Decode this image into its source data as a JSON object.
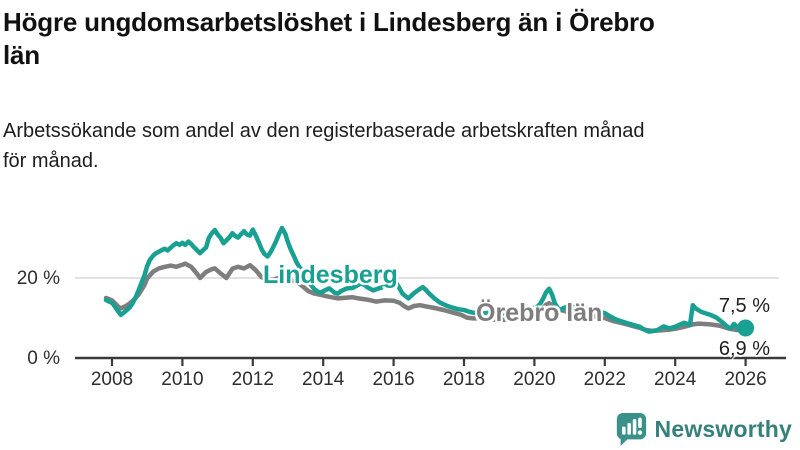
{
  "header": {
    "title": "Högre ungdomsarbetslöshet i Lindesberg än i Örebro\nlän",
    "subtitle": "Arbetssökande som andel av den registerbaserade arbetskraften månad\nför månad."
  },
  "branding": {
    "logo_text": "Newsworthy",
    "logo_icon": "bar-chart-speech-bubble-icon",
    "logo_color": "#399189"
  },
  "chart_data": {
    "type": "line",
    "title": "Högre ungdomsarbetslöshet i Lindesberg än i Örebro län",
    "subtitle": "Arbetssökande som andel av den registerbaserade arbetskraften månad för månad.",
    "y_unit": "%",
    "x_unit": "year, monthly observations",
    "xlim": [
      2007.6,
      2026.5
    ],
    "ylim": [
      0,
      36
    ],
    "grid": "single horizontal gridline at 20 %",
    "legend": "inline labels next to lines",
    "x_ticks": [
      2008,
      2010,
      2012,
      2014,
      2016,
      2018,
      2020,
      2022,
      2024,
      2026
    ],
    "y_ticks": [
      {
        "value": 20,
        "label": "20 %"
      },
      {
        "value": 0,
        "label": "0 %"
      }
    ],
    "series": [
      {
        "name": "Lindesberg",
        "color": "#18a092",
        "end_value": 7.5,
        "end_label": "7,5 %",
        "points": [
          [
            2007.83,
            14.5
          ],
          [
            2007.92,
            14.1
          ],
          [
            2008.0,
            13.8
          ],
          [
            2008.08,
            12.9
          ],
          [
            2008.17,
            11.7
          ],
          [
            2008.25,
            10.8
          ],
          [
            2008.33,
            11.3
          ],
          [
            2008.5,
            12.6
          ],
          [
            2008.58,
            13.6
          ],
          [
            2008.67,
            15.1
          ],
          [
            2008.75,
            16.8
          ],
          [
            2008.83,
            18.6
          ],
          [
            2008.92,
            20.6
          ],
          [
            2009.0,
            23.0
          ],
          [
            2009.08,
            24.6
          ],
          [
            2009.17,
            25.6
          ],
          [
            2009.25,
            26.2
          ],
          [
            2009.42,
            27.0
          ],
          [
            2009.5,
            27.3
          ],
          [
            2009.58,
            26.9
          ],
          [
            2009.67,
            27.6
          ],
          [
            2009.75,
            28.2
          ],
          [
            2009.83,
            28.7
          ],
          [
            2009.92,
            28.3
          ],
          [
            2010.0,
            28.8
          ],
          [
            2010.08,
            28.3
          ],
          [
            2010.17,
            29.1
          ],
          [
            2010.25,
            28.5
          ],
          [
            2010.33,
            27.7
          ],
          [
            2010.42,
            26.9
          ],
          [
            2010.5,
            26.2
          ],
          [
            2010.58,
            26.9
          ],
          [
            2010.67,
            27.6
          ],
          [
            2010.75,
            30.0
          ],
          [
            2010.83,
            31.1
          ],
          [
            2010.92,
            32.0
          ],
          [
            2011.0,
            30.9
          ],
          [
            2011.08,
            30.1
          ],
          [
            2011.17,
            28.7
          ],
          [
            2011.25,
            29.4
          ],
          [
            2011.33,
            30.1
          ],
          [
            2011.42,
            31.2
          ],
          [
            2011.5,
            30.5
          ],
          [
            2011.58,
            30.1
          ],
          [
            2011.67,
            31.0
          ],
          [
            2011.75,
            31.7
          ],
          [
            2011.83,
            30.9
          ],
          [
            2011.92,
            30.6
          ],
          [
            2012.0,
            32.1
          ],
          [
            2012.08,
            30.7
          ],
          [
            2012.17,
            28.9
          ],
          [
            2012.25,
            27.2
          ],
          [
            2012.33,
            26.0
          ],
          [
            2012.42,
            25.4
          ],
          [
            2012.5,
            26.4
          ],
          [
            2012.58,
            27.7
          ],
          [
            2012.67,
            29.4
          ],
          [
            2012.75,
            31.1
          ],
          [
            2012.83,
            32.5
          ],
          [
            2012.92,
            31.1
          ],
          [
            2013.0,
            28.9
          ],
          [
            2013.08,
            27.1
          ],
          [
            2013.17,
            25.4
          ],
          [
            2013.25,
            23.8
          ],
          [
            2013.33,
            22.7
          ],
          [
            2013.42,
            21.4
          ],
          [
            2013.5,
            20.2
          ],
          [
            2013.58,
            19.1
          ],
          [
            2013.67,
            18.1
          ],
          [
            2013.75,
            17.2
          ],
          [
            2013.83,
            16.7
          ],
          [
            2013.92,
            16.3
          ],
          [
            2014.0,
            16.7
          ],
          [
            2014.17,
            17.4
          ],
          [
            2014.33,
            16.3
          ],
          [
            2014.42,
            16.1
          ],
          [
            2014.5,
            16.7
          ],
          [
            2014.67,
            17.4
          ],
          [
            2014.83,
            17.5
          ],
          [
            2014.92,
            17.9
          ],
          [
            2015.0,
            18.3
          ],
          [
            2015.08,
            18.6
          ],
          [
            2015.17,
            18.3
          ],
          [
            2015.25,
            17.7
          ],
          [
            2015.42,
            16.9
          ],
          [
            2015.58,
            17.4
          ],
          [
            2015.75,
            17.9
          ],
          [
            2015.92,
            18.4
          ],
          [
            2016.08,
            18.7
          ],
          [
            2016.17,
            17.4
          ],
          [
            2016.25,
            16.1
          ],
          [
            2016.42,
            14.9
          ],
          [
            2016.58,
            16.2
          ],
          [
            2016.75,
            17.3
          ],
          [
            2016.83,
            17.7
          ],
          [
            2016.92,
            17.0
          ],
          [
            2017.0,
            16.2
          ],
          [
            2017.17,
            14.8
          ],
          [
            2017.33,
            13.8
          ],
          [
            2017.5,
            13.1
          ],
          [
            2017.67,
            12.6
          ],
          [
            2017.83,
            12.2
          ],
          [
            2018.0,
            12.0
          ],
          [
            2018.17,
            11.5
          ],
          [
            2018.33,
            11.2
          ],
          [
            2018.5,
            11.1
          ],
          [
            2018.67,
            11.3
          ],
          [
            2018.83,
            11.2
          ],
          [
            2019.0,
            11.0
          ],
          [
            2019.17,
            11.2
          ],
          [
            2019.33,
            11.6
          ],
          [
            2019.5,
            12.2
          ],
          [
            2019.58,
            11.8
          ],
          [
            2019.75,
            12.1
          ],
          [
            2019.92,
            12.3
          ],
          [
            2020.08,
            12.8
          ],
          [
            2020.17,
            13.6
          ],
          [
            2020.25,
            14.9
          ],
          [
            2020.33,
            16.4
          ],
          [
            2020.42,
            17.3
          ],
          [
            2020.5,
            15.9
          ],
          [
            2020.58,
            13.7
          ],
          [
            2020.67,
            12.4
          ],
          [
            2020.75,
            12.0
          ],
          [
            2020.83,
            12.5
          ],
          [
            2020.92,
            12.8
          ],
          [
            2021.0,
            12.4
          ],
          [
            2021.08,
            12.9
          ],
          [
            2021.17,
            12.4
          ],
          [
            2021.25,
            12.8
          ],
          [
            2021.33,
            12.2
          ],
          [
            2021.5,
            12.2
          ],
          [
            2021.58,
            11.9
          ],
          [
            2021.75,
            11.4
          ],
          [
            2021.83,
            11.6
          ],
          [
            2022.0,
            11.2
          ],
          [
            2022.17,
            10.3
          ],
          [
            2022.33,
            9.6
          ],
          [
            2022.5,
            9.1
          ],
          [
            2022.67,
            8.6
          ],
          [
            2022.83,
            8.2
          ],
          [
            2023.0,
            7.8
          ],
          [
            2023.08,
            7.3
          ],
          [
            2023.17,
            6.9
          ],
          [
            2023.25,
            6.6
          ],
          [
            2023.42,
            6.8
          ],
          [
            2023.5,
            7.0
          ],
          [
            2023.67,
            7.9
          ],
          [
            2023.83,
            7.4
          ],
          [
            2024.0,
            7.8
          ],
          [
            2024.17,
            8.5
          ],
          [
            2024.25,
            8.8
          ],
          [
            2024.42,
            8.3
          ],
          [
            2024.5,
            13.2
          ],
          [
            2024.58,
            12.4
          ],
          [
            2024.75,
            11.5
          ],
          [
            2024.92,
            11.0
          ],
          [
            2025.0,
            10.8
          ],
          [
            2025.17,
            10.1
          ],
          [
            2025.33,
            9.0
          ],
          [
            2025.5,
            7.7
          ],
          [
            2025.58,
            7.4
          ],
          [
            2025.67,
            8.5
          ],
          [
            2025.83,
            7.1
          ],
          [
            2025.92,
            7.8
          ],
          [
            2026.0,
            7.5
          ]
        ]
      },
      {
        "name": "Örebro län",
        "color": "#7e7e7e",
        "end_value": 6.9,
        "end_label": "6,9 %",
        "points": [
          [
            2007.83,
            15.0
          ],
          [
            2008.0,
            14.4
          ],
          [
            2008.17,
            12.9
          ],
          [
            2008.25,
            12.4
          ],
          [
            2008.42,
            13.1
          ],
          [
            2008.58,
            14.2
          ],
          [
            2008.75,
            15.8
          ],
          [
            2008.92,
            18.2
          ],
          [
            2009.0,
            19.9
          ],
          [
            2009.17,
            21.6
          ],
          [
            2009.33,
            22.4
          ],
          [
            2009.5,
            22.8
          ],
          [
            2009.67,
            23.1
          ],
          [
            2009.83,
            22.8
          ],
          [
            2010.0,
            23.3
          ],
          [
            2010.08,
            23.6
          ],
          [
            2010.25,
            22.8
          ],
          [
            2010.42,
            21.0
          ],
          [
            2010.5,
            20.0
          ],
          [
            2010.67,
            21.5
          ],
          [
            2010.83,
            22.2
          ],
          [
            2010.92,
            22.4
          ],
          [
            2011.08,
            21.2
          ],
          [
            2011.25,
            20.0
          ],
          [
            2011.42,
            22.3
          ],
          [
            2011.58,
            22.8
          ],
          [
            2011.75,
            22.4
          ],
          [
            2011.92,
            23.2
          ],
          [
            2012.08,
            22.0
          ],
          [
            2012.25,
            20.2
          ],
          [
            2012.42,
            19.5
          ],
          [
            2012.58,
            19.6
          ],
          [
            2012.75,
            20.1
          ],
          [
            2012.83,
            20.3
          ],
          [
            2013.0,
            19.6
          ],
          [
            2013.17,
            19.2
          ],
          [
            2013.25,
            19.1
          ],
          [
            2013.42,
            17.9
          ],
          [
            2013.58,
            16.7
          ],
          [
            2013.75,
            16.1
          ],
          [
            2013.92,
            15.8
          ],
          [
            2014.17,
            15.3
          ],
          [
            2014.42,
            14.9
          ],
          [
            2014.67,
            15.1
          ],
          [
            2014.83,
            15.2
          ],
          [
            2015.0,
            14.9
          ],
          [
            2015.25,
            14.6
          ],
          [
            2015.5,
            14.1
          ],
          [
            2015.75,
            14.4
          ],
          [
            2016.0,
            14.3
          ],
          [
            2016.17,
            13.8
          ],
          [
            2016.33,
            12.8
          ],
          [
            2016.42,
            12.4
          ],
          [
            2016.58,
            13.0
          ],
          [
            2016.75,
            13.2
          ],
          [
            2016.92,
            12.9
          ],
          [
            2017.17,
            12.5
          ],
          [
            2017.42,
            12.0
          ],
          [
            2017.67,
            11.4
          ],
          [
            2017.92,
            10.8
          ],
          [
            2018.08,
            10.1
          ],
          [
            2018.25,
            9.9
          ],
          [
            2018.5,
            9.9
          ],
          [
            2018.75,
            9.7
          ],
          [
            2019.0,
            9.5
          ],
          [
            2019.25,
            9.6
          ],
          [
            2019.5,
            9.8
          ],
          [
            2019.75,
            10.0
          ],
          [
            2020.0,
            10.4
          ],
          [
            2020.17,
            11.6
          ],
          [
            2020.33,
            13.3
          ],
          [
            2020.42,
            13.7
          ],
          [
            2020.58,
            12.7
          ],
          [
            2020.75,
            12.0
          ],
          [
            2020.92,
            11.6
          ],
          [
            2021.08,
            11.3
          ],
          [
            2021.33,
            10.9
          ],
          [
            2021.58,
            10.6
          ],
          [
            2021.83,
            10.2
          ],
          [
            2022.0,
            10.0
          ],
          [
            2022.25,
            9.2
          ],
          [
            2022.5,
            8.7
          ],
          [
            2022.75,
            8.1
          ],
          [
            2023.0,
            7.5
          ],
          [
            2023.17,
            7.0
          ],
          [
            2023.33,
            6.8
          ],
          [
            2023.58,
            6.9
          ],
          [
            2023.83,
            7.1
          ],
          [
            2024.0,
            7.3
          ],
          [
            2024.25,
            7.8
          ],
          [
            2024.5,
            8.4
          ],
          [
            2024.67,
            8.6
          ],
          [
            2024.83,
            8.5
          ],
          [
            2025.0,
            8.4
          ],
          [
            2025.25,
            8.1
          ],
          [
            2025.5,
            7.4
          ],
          [
            2025.75,
            7.0
          ],
          [
            2026.0,
            6.9
          ]
        ]
      }
    ]
  }
}
